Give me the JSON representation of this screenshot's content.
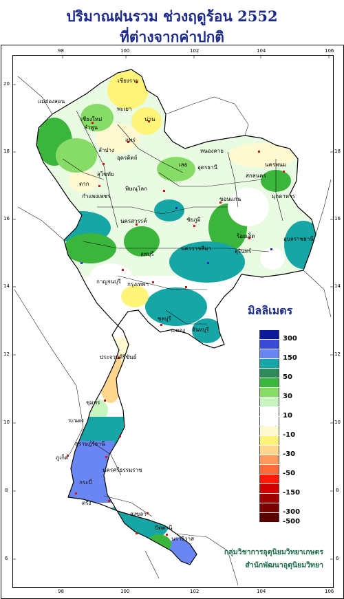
{
  "title_line1": "ปริมาณฝนรวม ช่วงฤดูร้อน 2552",
  "title_line2": "ที่ต่างจากค่าปกติ",
  "legend": {
    "title": "มิลลิเมตร",
    "classes": [
      {
        "color": "#0a1a9a",
        "label": "300"
      },
      {
        "color": "#3a4ad8",
        "label": ""
      },
      {
        "color": "#6a86f2",
        "label": "150"
      },
      {
        "color": "#16a6a6",
        "label": ""
      },
      {
        "color": "#2e8a5a",
        "label": "50"
      },
      {
        "color": "#3cb53c",
        "label": ""
      },
      {
        "color": "#86dc66",
        "label": "30"
      },
      {
        "color": "#c8f4c0",
        "label": ""
      },
      {
        "color": "#ffffff",
        "label": "10"
      },
      {
        "color": "#ffffff",
        "label": ""
      },
      {
        "color": "#fffad2",
        "label": "-10"
      },
      {
        "color": "#fff47a",
        "label": ""
      },
      {
        "color": "#ffd68e",
        "label": "-30"
      },
      {
        "color": "#ff9a5e",
        "label": ""
      },
      {
        "color": "#ff6a3a",
        "label": "-50"
      },
      {
        "color": "#ff1a00",
        "label": ""
      },
      {
        "color": "#d20000",
        "label": "-150"
      },
      {
        "color": "#a00000",
        "label": ""
      },
      {
        "color": "#7a0000",
        "label": "-300"
      },
      {
        "color": "#5a0000",
        "label": "-500"
      }
    ]
  },
  "axis": {
    "lon_top": [
      "98",
      "100",
      "102",
      "104",
      "106"
    ],
    "lon_bottom": [
      "98",
      "100",
      "102",
      "104",
      "106"
    ],
    "lat_left": [
      "20",
      "18",
      "16",
      "14",
      "12",
      "10",
      "8",
      "6"
    ],
    "lat_right": [
      "18",
      "16",
      "14",
      "12",
      "10",
      "8",
      "6"
    ]
  },
  "provinces": [
    {
      "name": "เชียงราย"
    },
    {
      "name": "แม่ฮ่องสอน"
    },
    {
      "name": "เชียงใหม่"
    },
    {
      "name": "พะเยา"
    },
    {
      "name": "ลำพูน"
    },
    {
      "name": "น่าน"
    },
    {
      "name": "แพร่"
    },
    {
      "name": "ลำปาง"
    },
    {
      "name": "อุตรดิตถ์"
    },
    {
      "name": "หนองคาย"
    },
    {
      "name": "นครพนม"
    },
    {
      "name": "สกลนคร"
    },
    {
      "name": "เลย"
    },
    {
      "name": "อุดรธานี"
    },
    {
      "name": "มุกดาหาร"
    },
    {
      "name": "ตาก"
    },
    {
      "name": "สุโขทัย"
    },
    {
      "name": "พิษณุโลก"
    },
    {
      "name": "ขอนแก่น"
    },
    {
      "name": "กำแพงเพชร"
    },
    {
      "name": "นครสวรรค์"
    },
    {
      "name": "ชัยภูมิ"
    },
    {
      "name": "ร้อยเอ็ด"
    },
    {
      "name": "อุบลราชธานี"
    },
    {
      "name": "ลพบุรี"
    },
    {
      "name": "นครราชสีมา"
    },
    {
      "name": "สุรินทร์"
    },
    {
      "name": "กาญจนบุรี"
    },
    {
      "name": "กรุงเทพฯ"
    },
    {
      "name": "ชลบุรี"
    },
    {
      "name": "ระยอง"
    },
    {
      "name": "จันทบุรี"
    },
    {
      "name": "ประจวบคีรีขันธ์"
    },
    {
      "name": "ชุมพร"
    },
    {
      "name": "ระนอง"
    },
    {
      "name": "สุราษฎร์ธานี"
    },
    {
      "name": "ภูเก็ต"
    },
    {
      "name": "นครศรีธรรมราช"
    },
    {
      "name": "กระบี่"
    },
    {
      "name": "ตรัง"
    },
    {
      "name": "สงขลา"
    },
    {
      "name": "ปัตตานี"
    },
    {
      "name": "นราธิวาส"
    }
  ],
  "credit_line1": "กลุ่มวิชาการอุตุนิยมวิทยาเกษตร",
  "credit_line2": "สำนักพัฒนาอุตุนิยมวิทยา"
}
